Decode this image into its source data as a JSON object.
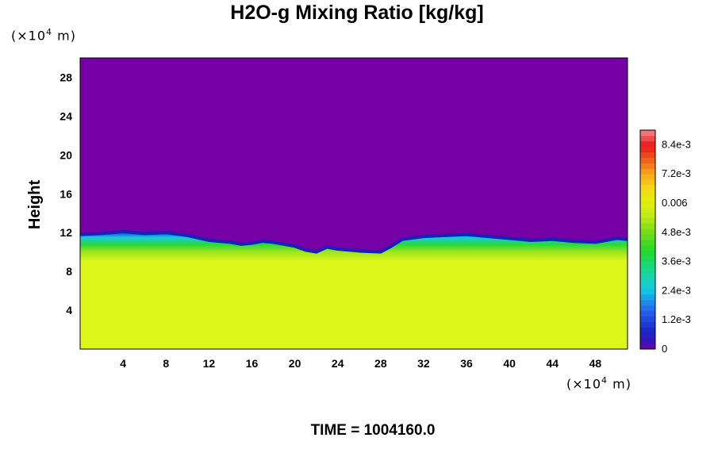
{
  "chart_data": {
    "type": "heatmap",
    "title": "H2O-g Mixing Ratio [kg/kg]",
    "ylabel": "Height",
    "xlabel": "",
    "x_unit": "(×10⁴ m)",
    "y_unit": "(×10⁴ m)",
    "xlim": [
      0,
      51
    ],
    "ylim": [
      0,
      30
    ],
    "x_ticks": [
      4,
      8,
      12,
      16,
      20,
      24,
      28,
      32,
      36,
      40,
      44,
      48
    ],
    "y_ticks": [
      4,
      8,
      12,
      16,
      20,
      24,
      28
    ],
    "colorbar": {
      "range": [
        0,
        0.009
      ],
      "labels": [
        "0",
        "1.2e-3",
        "2.4e-3",
        "3.6e-3",
        "4.8e-3",
        "0.006",
        "7.2e-3",
        "8.4e-3"
      ],
      "label_values": [
        0,
        0.0012,
        0.0024,
        0.0036,
        0.0048,
        0.006,
        0.0072,
        0.0084
      ]
    },
    "moist_layer_top": {
      "x": [
        0,
        2,
        4,
        6,
        8,
        10,
        12,
        14,
        15,
        16,
        17,
        18,
        20,
        21,
        22,
        23,
        24,
        26,
        28,
        29,
        30,
        32,
        34,
        36,
        38,
        40,
        42,
        44,
        46,
        48,
        49,
        50,
        51
      ],
      "height": [
        11.8,
        11.9,
        12.1,
        11.9,
        12.0,
        11.7,
        11.2,
        11.0,
        10.8,
        10.9,
        11.1,
        11.0,
        10.6,
        10.2,
        10.0,
        10.5,
        10.3,
        10.1,
        10.0,
        10.6,
        11.3,
        11.6,
        11.7,
        11.8,
        11.6,
        11.4,
        11.2,
        11.3,
        11.1,
        11.0,
        11.2,
        11.4,
        11.3
      ]
    },
    "dry_value": 0.0,
    "moist_value": 0.0063,
    "transition_value": 0.0028
  },
  "footer": {
    "time_label": "TIME = 1004160.0"
  }
}
